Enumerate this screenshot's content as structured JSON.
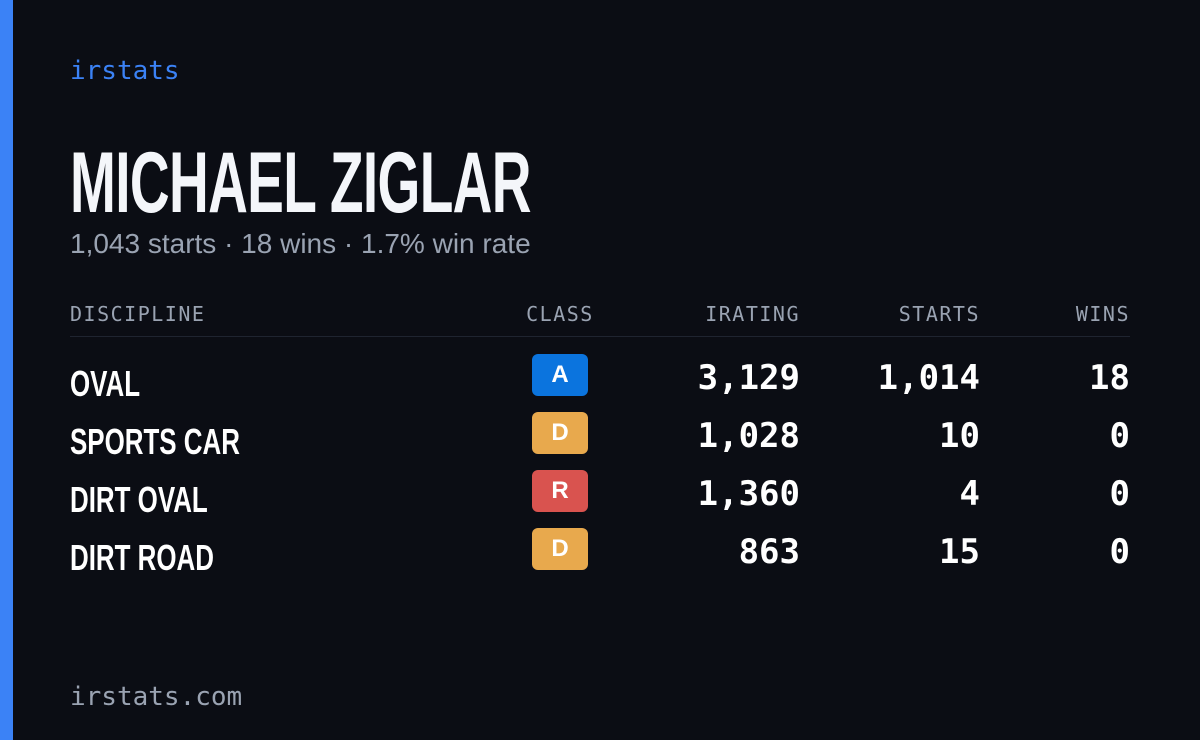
{
  "header": {
    "brand": "irstats",
    "title": "MICHAEL ZIGLAR",
    "subtitle": "1,043 starts · 18 wins · 1.7% win rate"
  },
  "table": {
    "columns": [
      "DISCIPLINE",
      "CLASS",
      "IRATING",
      "STARTS",
      "WINS"
    ],
    "rows": [
      {
        "discipline": "OVAL",
        "class": "A",
        "class_color": "#0b74de",
        "irating": "3,129",
        "starts": "1,014",
        "wins": "18"
      },
      {
        "discipline": "SPORTS CAR",
        "class": "D",
        "class_color": "#e8a94d",
        "irating": "1,028",
        "starts": "10",
        "wins": "0"
      },
      {
        "discipline": "DIRT OVAL",
        "class": "R",
        "class_color": "#d9534f",
        "irating": "1,360",
        "starts": "4",
        "wins": "0"
      },
      {
        "discipline": "DIRT ROAD",
        "class": "D",
        "class_color": "#e8a94d",
        "irating": "863",
        "starts": "15",
        "wins": "0"
      }
    ]
  },
  "footer": {
    "url": "irstats.com"
  }
}
